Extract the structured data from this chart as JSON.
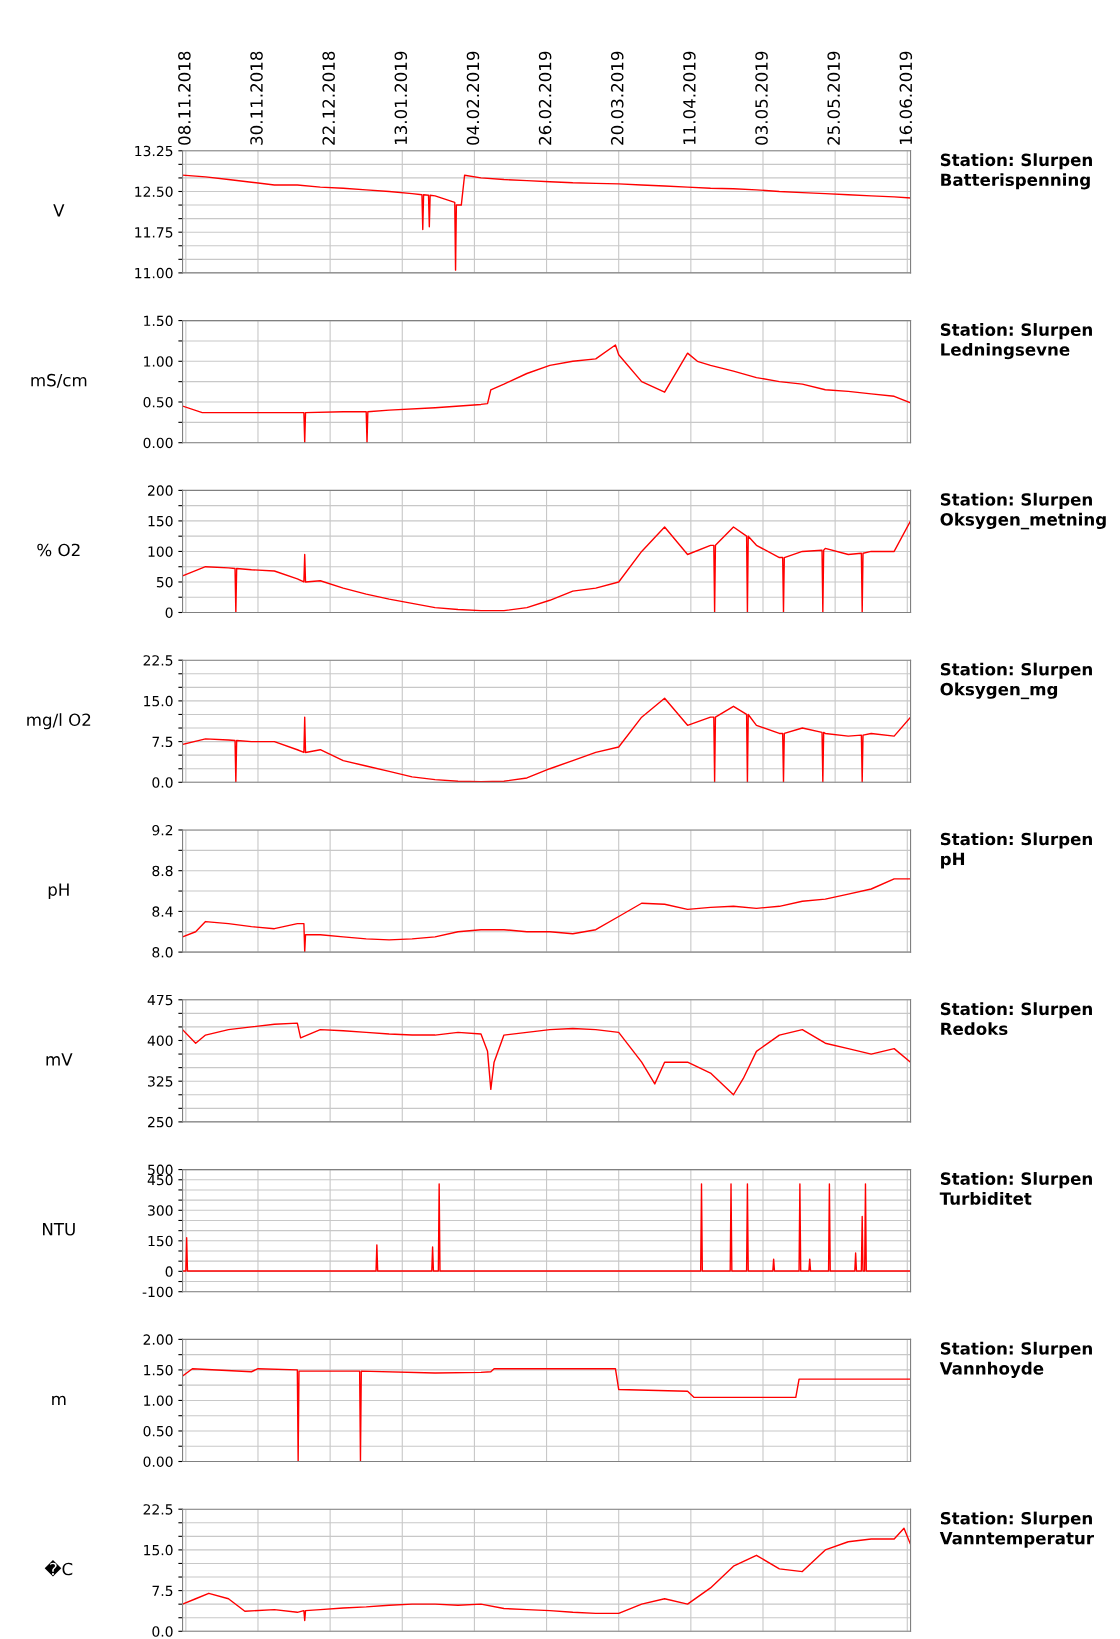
{
  "chart_data": [
    {
      "type": "line",
      "annotations": [
        "Station: Slurpen\nBatterispenning"
      ],
      "ylabel": "V",
      "color": "#ff0000",
      "grid": true,
      "line_style": "solid",
      "xlim": [
        "2018-11-07",
        "2019-06-17"
      ],
      "xticks": [
        {
          "value": "2018-11-08",
          "label": "08.11.2018"
        },
        {
          "value": "2018-11-30",
          "label": "30.11.2018"
        },
        {
          "value": "2018-12-22",
          "label": "22.12.2018"
        },
        {
          "value": "2019-01-13",
          "label": "13.01.2019"
        },
        {
          "value": "2019-02-04",
          "label": "04.02.2019"
        },
        {
          "value": "2019-02-26",
          "label": "26.02.2019"
        },
        {
          "value": "2019-03-20",
          "label": "20.03.2019"
        },
        {
          "value": "2019-04-11",
          "label": "11.04.2019"
        },
        {
          "value": "2019-05-03",
          "label": "03.05.2019"
        },
        {
          "value": "2019-05-25",
          "label": "25.05.2019"
        },
        {
          "value": "2019-06-16",
          "label": "16.06.2019"
        }
      ],
      "ylim": [
        11,
        13.25
      ],
      "yticks": [
        {
          "value": 11,
          "label": "11.00"
        },
        {
          "value": 11.25,
          "label": null
        },
        {
          "value": 11.5,
          "label": null
        },
        {
          "value": 11.75,
          "label": "11.75"
        },
        {
          "value": 12,
          "label": null
        },
        {
          "value": 12.25,
          "label": null
        },
        {
          "value": 12.5,
          "label": "12.50"
        },
        {
          "value": 12.75,
          "label": null
        },
        {
          "value": 13,
          "label": null
        },
        {
          "value": 13.25,
          "label": "13.25"
        }
      ],
      "x": [
        "2018-11-07",
        "2018-11-14",
        "2018-11-21",
        "2018-11-28",
        "2018-12-05",
        "2018-12-12",
        "2018-12-19",
        "2018-12-26",
        "2019-01-02",
        "2019-01-09",
        "2019-01-16",
        "2019-01-19T00:00",
        "2019-01-19T06:00",
        "2019-01-19T12:00",
        "2019-01-21T00:00",
        "2019-01-21T06:00",
        "2019-01-21T12:00",
        "2019-01-23",
        "2019-01-29T00:00",
        "2019-01-29T06:00",
        "2019-01-29T12:00",
        "2019-01-31",
        "2019-02-01",
        "2019-02-06",
        "2019-02-13",
        "2019-02-20",
        "2019-02-27",
        "2019-03-06",
        "2019-03-13",
        "2019-03-20",
        "2019-03-27",
        "2019-04-03",
        "2019-04-10",
        "2019-04-17",
        "2019-04-24",
        "2019-05-01",
        "2019-05-08",
        "2019-05-15",
        "2019-05-22",
        "2019-05-29",
        "2019-06-05",
        "2019-06-12",
        "2019-06-17"
      ],
      "values": [
        12.8,
        12.77,
        12.72,
        12.67,
        12.62,
        12.62,
        12.58,
        12.56,
        12.53,
        12.5,
        12.46,
        12.44,
        11.8,
        12.44,
        12.43,
        11.85,
        12.43,
        12.42,
        12.3,
        11.05,
        12.25,
        12.25,
        12.8,
        12.75,
        12.72,
        12.7,
        12.68,
        12.66,
        12.65,
        12.64,
        12.62,
        12.6,
        12.58,
        12.56,
        12.55,
        12.53,
        12.5,
        12.48,
        12.46,
        12.44,
        12.42,
        12.4,
        12.38
      ]
    },
    {
      "type": "line",
      "annotations": [
        "Station: Slurpen\nLedningsevne"
      ],
      "ylabel": "mS/cm",
      "color": "#ff0000",
      "grid": true,
      "line_style": "solid",
      "tick_labels": "y",
      "xlim": [
        "2018-11-07",
        "2019-06-17"
      ],
      "xticks": [
        "2018-11-08",
        "2018-11-30",
        "2018-12-22",
        "2019-01-13",
        "2019-02-04",
        "2019-02-26",
        "2019-03-20",
        "2019-04-11",
        "2019-05-03",
        "2019-05-25",
        "2019-06-16"
      ],
      "ylim": [
        0,
        1.5
      ],
      "yticks": [
        {
          "value": 0,
          "label": "0.00"
        },
        {
          "value": 0.25,
          "label": null
        },
        {
          "value": 0.5,
          "label": "0.50"
        },
        {
          "value": 0.75,
          "label": null
        },
        {
          "value": 1,
          "label": "1.00"
        },
        {
          "value": 1.25,
          "label": null
        },
        {
          "value": 1.5,
          "label": "1.50"
        }
      ],
      "x": [
        "2018-11-07",
        "2018-11-13",
        "2018-11-21",
        "2018-12-05",
        "2018-12-14T00:00",
        "2018-12-14T06:00",
        "2018-12-14T12:00",
        "2018-12-26",
        "2019-01-02T00:00",
        "2019-01-02T06:00",
        "2019-01-02T12:00",
        "2019-01-09",
        "2019-01-23",
        "2019-02-06",
        "2019-02-08",
        "2019-02-09",
        "2019-02-13",
        "2019-02-20",
        "2019-02-27",
        "2019-03-06",
        "2019-03-13",
        "2019-03-19",
        "2019-03-20",
        "2019-03-27",
        "2019-04-03",
        "2019-04-10",
        "2019-04-13",
        "2019-04-17",
        "2019-04-24",
        "2019-05-01",
        "2019-05-08",
        "2019-05-15",
        "2019-05-22",
        "2019-05-29",
        "2019-06-05",
        "2019-06-12",
        "2019-06-17"
      ],
      "values": [
        0.45,
        0.37,
        0.37,
        0.37,
        0.37,
        0.0,
        0.37,
        0.38,
        0.38,
        0.0,
        0.38,
        0.4,
        0.43,
        0.47,
        0.48,
        0.65,
        0.72,
        0.85,
        0.95,
        1.0,
        1.03,
        1.2,
        1.08,
        0.75,
        0.62,
        1.1,
        1.0,
        0.95,
        0.88,
        0.8,
        0.75,
        0.72,
        0.65,
        0.63,
        0.6,
        0.57,
        0.49
      ]
    },
    {
      "type": "line",
      "annotations": [
        "Station: Slurpen\nOksygen_metning"
      ],
      "ylabel": "% O2",
      "color": "#ff0000",
      "grid": true,
      "line_style": "solid",
      "tick_labels": "y",
      "xlim": [
        "2018-11-07",
        "2019-06-17"
      ],
      "xticks": [
        "2018-11-08",
        "2018-11-30",
        "2018-12-22",
        "2019-01-13",
        "2019-02-04",
        "2019-02-26",
        "2019-03-20",
        "2019-04-11",
        "2019-05-03",
        "2019-05-25",
        "2019-06-16"
      ],
      "ylim": [
        0,
        200
      ],
      "yticks": [
        0,
        {
          "value": 25,
          "label": null
        },
        50,
        {
          "value": 75,
          "label": null
        },
        100,
        {
          "value": 125,
          "label": null
        },
        150,
        {
          "value": 175,
          "label": null
        },
        200
      ],
      "x": [
        "2018-11-07",
        "2018-11-14",
        "2018-11-21",
        "2018-11-23T00:00",
        "2018-11-23T06:00",
        "2018-11-23T12:00",
        "2018-11-28",
        "2018-12-05",
        "2018-12-12",
        "2018-12-14T00:00",
        "2018-12-14T06:00",
        "2018-12-14T12:00",
        "2018-12-19",
        "2018-12-26",
        "2019-01-02",
        "2019-01-09",
        "2019-01-16",
        "2019-01-23",
        "2019-01-30",
        "2019-02-06",
        "2019-02-13",
        "2019-02-20",
        "2019-02-27",
        "2019-03-06",
        "2019-03-13",
        "2019-03-20",
        "2019-03-27",
        "2019-04-03",
        "2019-04-10",
        "2019-04-17",
        "2019-04-18T00:00",
        "2019-04-18T06:00",
        "2019-04-18T12:00",
        "2019-04-24",
        "2019-04-28T00:00",
        "2019-04-28T06:00",
        "2019-04-28T12:00",
        "2019-05-01",
        "2019-05-08",
        "2019-05-09T00:00",
        "2019-05-09T06:00",
        "2019-05-09T12:00",
        "2019-05-15",
        "2019-05-21T00:00",
        "2019-05-21T06:00",
        "2019-05-21T12:00",
        "2019-05-22",
        "2019-05-29",
        "2019-06-02T00:00",
        "2019-06-02T06:00",
        "2019-06-02T12:00",
        "2019-06-05",
        "2019-06-12",
        "2019-06-17"
      ],
      "values": [
        60,
        75,
        73,
        72,
        0,
        72,
        70,
        68,
        55,
        50,
        95,
        50,
        52,
        40,
        30,
        22,
        15,
        8,
        5,
        3,
        3,
        8,
        20,
        35,
        40,
        50,
        100,
        140,
        95,
        110,
        110,
        0,
        110,
        140,
        125,
        0,
        125,
        110,
        90,
        90,
        0,
        90,
        100,
        102,
        0,
        102,
        105,
        95,
        97,
        0,
        97,
        100,
        100,
        150
      ]
    },
    {
      "type": "line",
      "annotations": [
        "Station: Slurpen\nOksygen_mg"
      ],
      "ylabel": "mg/l O2",
      "color": "#ff0000",
      "grid": true,
      "line_style": "solid",
      "tick_labels": "y",
      "xlim": [
        "2018-11-07",
        "2019-06-17"
      ],
      "xticks": [
        "2018-11-08",
        "2018-11-30",
        "2018-12-22",
        "2019-01-13",
        "2019-02-04",
        "2019-02-26",
        "2019-03-20",
        "2019-04-11",
        "2019-05-03",
        "2019-05-25",
        "2019-06-16"
      ],
      "ylim": [
        0,
        22.5
      ],
      "yticks": [
        {
          "value": 0,
          "label": "0.0"
        },
        {
          "value": 2.5,
          "label": null
        },
        {
          "value": 5,
          "label": null
        },
        {
          "value": 7.5,
          "label": "7.5"
        },
        {
          "value": 10,
          "label": null
        },
        {
          "value": 12.5,
          "label": null
        },
        {
          "value": 15,
          "label": "15.0"
        },
        {
          "value": 17.5,
          "label": null
        },
        {
          "value": 20,
          "label": null
        },
        {
          "value": 22.5,
          "label": "22.5"
        }
      ],
      "x": [
        "2018-11-07",
        "2018-11-14",
        "2018-11-21",
        "2018-11-23T00:00",
        "2018-11-23T06:00",
        "2018-11-23T12:00",
        "2018-11-28",
        "2018-12-05",
        "2018-12-12",
        "2018-12-14T00:00",
        "2018-12-14T06:00",
        "2018-12-14T12:00",
        "2018-12-19",
        "2018-12-26",
        "2019-01-02",
        "2019-01-09",
        "2019-01-16",
        "2019-01-23",
        "2019-01-30",
        "2019-02-06",
        "2019-02-13",
        "2019-02-20",
        "2019-02-27",
        "2019-03-06",
        "2019-03-13",
        "2019-03-20",
        "2019-03-27",
        "2019-04-03",
        "2019-04-10",
        "2019-04-17",
        "2019-04-18T00:00",
        "2019-04-18T06:00",
        "2019-04-18T12:00",
        "2019-04-24",
        "2019-04-28T00:00",
        "2019-04-28T06:00",
        "2019-04-28T12:00",
        "2019-05-01",
        "2019-05-08",
        "2019-05-09T00:00",
        "2019-05-09T06:00",
        "2019-05-09T12:00",
        "2019-05-15",
        "2019-05-21T00:00",
        "2019-05-21T06:00",
        "2019-05-21T12:00",
        "2019-05-22",
        "2019-05-29",
        "2019-06-02T00:00",
        "2019-06-02T06:00",
        "2019-06-02T12:00",
        "2019-06-05",
        "2019-06-12",
        "2019-06-17"
      ],
      "values": [
        7.0,
        8.0,
        7.8,
        7.7,
        0,
        7.7,
        7.5,
        7.5,
        6.0,
        5.5,
        12.0,
        5.5,
        6.0,
        4.0,
        3.0,
        2.0,
        1.0,
        0.5,
        0.2,
        0.1,
        0.2,
        0.8,
        2.5,
        4.0,
        5.5,
        6.5,
        12.0,
        15.5,
        10.5,
        12.0,
        12.0,
        0,
        12.0,
        14.0,
        12.5,
        0,
        12.5,
        10.5,
        9.0,
        9.0,
        0,
        9.0,
        10.0,
        9.2,
        0,
        9.2,
        9.0,
        8.5,
        8.7,
        0,
        8.7,
        9.0,
        8.5,
        12.0
      ]
    },
    {
      "type": "line",
      "annotations": [
        "Station: Slurpen\npH"
      ],
      "ylabel": "pH",
      "color": "#ff0000",
      "grid": true,
      "line_style": "solid",
      "tick_labels": "y",
      "xlim": [
        "2018-11-07",
        "2019-06-17"
      ],
      "xticks": [
        "2018-11-08",
        "2018-11-30",
        "2018-12-22",
        "2019-01-13",
        "2019-02-04",
        "2019-02-26",
        "2019-03-20",
        "2019-04-11",
        "2019-05-03",
        "2019-05-25",
        "2019-06-16"
      ],
      "ylim": [
        8.0,
        9.2
      ],
      "yticks": [
        {
          "value": 8.0,
          "label": "8.0"
        },
        {
          "value": 8.2,
          "label": null
        },
        {
          "value": 8.4,
          "label": "8.4"
        },
        {
          "value": 8.6,
          "label": null
        },
        {
          "value": 8.8,
          "label": "8.8"
        },
        {
          "value": 9.0,
          "label": null
        },
        {
          "value": 9.2,
          "label": "9.2"
        }
      ],
      "x": [
        "2018-11-07",
        "2018-11-11",
        "2018-11-14",
        "2018-11-21",
        "2018-11-28",
        "2018-12-05",
        "2018-12-12",
        "2018-12-14T00:00",
        "2018-12-14T06:00",
        "2018-12-14T12:00",
        "2018-12-19",
        "2018-12-26",
        "2019-01-02",
        "2019-01-09",
        "2019-01-16",
        "2019-01-23",
        "2019-01-30",
        "2019-02-06",
        "2019-02-13",
        "2019-02-20",
        "2019-02-27",
        "2019-03-06",
        "2019-03-13",
        "2019-03-20",
        "2019-03-27",
        "2019-04-03",
        "2019-04-10",
        "2019-04-17",
        "2019-04-24",
        "2019-05-01",
        "2019-05-08",
        "2019-05-15",
        "2019-05-22",
        "2019-05-29",
        "2019-06-05",
        "2019-06-12",
        "2019-06-17"
      ],
      "values": [
        8.15,
        8.2,
        8.3,
        8.28,
        8.25,
        8.23,
        8.28,
        8.28,
        8.0,
        8.17,
        8.17,
        8.15,
        8.13,
        8.12,
        8.13,
        8.15,
        8.2,
        8.22,
        8.22,
        8.2,
        8.2,
        8.18,
        8.22,
        8.35,
        8.48,
        8.47,
        8.42,
        8.44,
        8.45,
        8.43,
        8.45,
        8.5,
        8.52,
        8.57,
        8.62,
        8.72,
        8.72
      ]
    },
    {
      "type": "line",
      "annotations": [
        "Station: Slurpen\nRedoks"
      ],
      "ylabel": "mV",
      "color": "#ff0000",
      "grid": true,
      "line_style": "solid",
      "tick_labels": "y",
      "xlim": [
        "2018-11-07",
        "2019-06-17"
      ],
      "xticks": [
        "2018-11-08",
        "2018-11-30",
        "2018-12-22",
        "2019-01-13",
        "2019-02-04",
        "2019-02-26",
        "2019-03-20",
        "2019-04-11",
        "2019-05-03",
        "2019-05-25",
        "2019-06-16"
      ],
      "ylim": [
        250,
        475
      ],
      "yticks": [
        250,
        {
          "value": 275,
          "label": null
        },
        {
          "value": 300,
          "label": null
        },
        325,
        {
          "value": 350,
          "label": null
        },
        {
          "value": 375,
          "label": null
        },
        400,
        {
          "value": 425,
          "label": null
        },
        {
          "value": 450,
          "label": null
        },
        475
      ],
      "x": [
        "2018-11-07",
        "2018-11-11",
        "2018-11-14",
        "2018-11-21",
        "2018-11-28",
        "2018-12-05",
        "2018-12-12",
        "2018-12-13",
        "2018-12-19",
        "2018-12-26",
        "2019-01-02",
        "2019-01-09",
        "2019-01-16",
        "2019-01-23",
        "2019-01-30",
        "2019-02-06",
        "2019-02-08",
        "2019-02-09",
        "2019-02-10",
        "2019-02-13",
        "2019-02-20",
        "2019-02-27",
        "2019-03-06",
        "2019-03-13",
        "2019-03-20",
        "2019-03-27",
        "2019-03-31",
        "2019-04-03",
        "2019-04-10",
        "2019-04-17",
        "2019-04-24",
        "2019-04-27",
        "2019-05-01",
        "2019-05-08",
        "2019-05-15",
        "2019-05-22",
        "2019-05-29",
        "2019-06-05",
        "2019-06-12",
        "2019-06-17"
      ],
      "values": [
        420,
        395,
        410,
        420,
        425,
        430,
        432,
        405,
        420,
        418,
        415,
        412,
        410,
        410,
        415,
        412,
        380,
        310,
        360,
        410,
        415,
        420,
        422,
        420,
        415,
        360,
        320,
        360,
        360,
        340,
        300,
        330,
        380,
        410,
        420,
        395,
        385,
        375,
        385,
        360
      ]
    },
    {
      "type": "line",
      "annotations": [
        "Station: Slurpen\nTurbiditet"
      ],
      "ylabel": "NTU",
      "color": "#ff0000",
      "grid": true,
      "line_style": "solid",
      "tick_labels": "y",
      "xlim": [
        "2018-11-07",
        "2019-06-17"
      ],
      "xticks": [
        "2018-11-08",
        "2018-11-30",
        "2018-12-22",
        "2019-01-13",
        "2019-02-04",
        "2019-02-26",
        "2019-03-20",
        "2019-04-11",
        "2019-05-03",
        "2019-05-25",
        "2019-06-16"
      ],
      "ylim": [
        -100,
        500
      ],
      "yticks": [
        -100,
        {
          "value": -50,
          "label": null
        },
        0,
        {
          "value": 50,
          "label": null
        },
        {
          "value": 100,
          "label": null
        },
        150,
        {
          "value": 200,
          "label": null
        },
        {
          "value": 250,
          "label": null
        },
        300,
        {
          "value": 350,
          "label": null
        },
        {
          "value": 400,
          "label": null
        },
        450,
        500
      ],
      "x": [
        "2018-11-07",
        "2018-11-08T00:00",
        "2018-11-08T06:00",
        "2018-11-08T12:00",
        "2019-01-05T00:00",
        "2019-01-05T06:00",
        "2019-01-05T12:00",
        "2019-01-22T00:00",
        "2019-01-22T06:00",
        "2019-01-22T12:00",
        "2019-01-24T00:00",
        "2019-01-24T06:00",
        "2019-01-24T12:00",
        "2019-04-14T00:00",
        "2019-04-14T06:00",
        "2019-04-14T12:00",
        "2019-04-23T00:00",
        "2019-04-23T06:00",
        "2019-04-23T12:00",
        "2019-04-28T00:00",
        "2019-04-28T06:00",
        "2019-04-28T12:00",
        "2019-05-06T00:00",
        "2019-05-06T06:00",
        "2019-05-06T12:00",
        "2019-05-14T00:00",
        "2019-05-14T06:00",
        "2019-05-14T12:00",
        "2019-05-17T00:00",
        "2019-05-17T06:00",
        "2019-05-17T12:00",
        "2019-05-23T00:00",
        "2019-05-23T06:00",
        "2019-05-23T12:00",
        "2019-05-31T00:00",
        "2019-05-31T06:00",
        "2019-05-31T12:00",
        "2019-06-02T00:00",
        "2019-06-02T06:00",
        "2019-06-02T12:00",
        "2019-06-03T00:00",
        "2019-06-03T06:00",
        "2019-06-03T12:00",
        "2019-06-17"
      ],
      "values": [
        2,
        2,
        165,
        2,
        2,
        130,
        2,
        2,
        120,
        2,
        2,
        430,
        2,
        2,
        430,
        2,
        2,
        430,
        2,
        2,
        430,
        2,
        2,
        60,
        2,
        2,
        430,
        2,
        2,
        60,
        2,
        2,
        430,
        2,
        2,
        90,
        2,
        2,
        270,
        2,
        2,
        430,
        2,
        2
      ]
    },
    {
      "type": "line",
      "annotations": [
        "Station: Slurpen\nVannhoyde"
      ],
      "ylabel": "m",
      "color": "#ff0000",
      "grid": true,
      "line_style": "solid",
      "tick_labels": "y",
      "xlim": [
        "2018-11-07",
        "2019-06-17"
      ],
      "xticks": [
        "2018-11-08",
        "2018-11-30",
        "2018-12-22",
        "2019-01-13",
        "2019-02-04",
        "2019-02-26",
        "2019-03-20",
        "2019-04-11",
        "2019-05-03",
        "2019-05-25",
        "2019-06-16"
      ],
      "ylim": [
        0,
        2
      ],
      "yticks": [
        {
          "value": 0,
          "label": "0.00"
        },
        {
          "value": 0.25,
          "label": null
        },
        {
          "value": 0.5,
          "label": "0.50"
        },
        {
          "value": 0.75,
          "label": null
        },
        {
          "value": 1,
          "label": "1.00"
        },
        {
          "value": 1.25,
          "label": null
        },
        {
          "value": 1.5,
          "label": "1.50"
        },
        {
          "value": 1.75,
          "label": null
        },
        {
          "value": 2,
          "label": "2.00"
        }
      ],
      "x": [
        "2018-11-07",
        "2018-11-10",
        "2018-11-28",
        "2018-11-30",
        "2018-12-12T00:00",
        "2018-12-12T06:00",
        "2018-12-12T12:00",
        "2018-12-31T00:00",
        "2018-12-31T06:00",
        "2018-12-31T12:00",
        "2019-01-23",
        "2019-02-06",
        "2019-02-09",
        "2019-02-10",
        "2019-03-19",
        "2019-03-20",
        "2019-04-10",
        "2019-04-12",
        "2019-05-13",
        "2019-05-14",
        "2019-06-17"
      ],
      "values": [
        1.4,
        1.52,
        1.47,
        1.52,
        1.5,
        0.0,
        1.48,
        1.48,
        0.0,
        1.48,
        1.45,
        1.46,
        1.47,
        1.52,
        1.52,
        1.18,
        1.15,
        1.05,
        1.05,
        1.35,
        1.35
      ]
    },
    {
      "type": "line",
      "annotations": [
        "Station: Slurpen\nVanntemperatur"
      ],
      "ylabel": "�C",
      "color": "#ff0000",
      "grid": true,
      "line_style": "solid",
      "tick_labels": "y",
      "xlim": [
        "2018-11-07",
        "2019-06-17"
      ],
      "xticks": [
        "2018-11-08",
        "2018-11-30",
        "2018-12-22",
        "2019-01-13",
        "2019-02-04",
        "2019-02-26",
        "2019-03-20",
        "2019-04-11",
        "2019-05-03",
        "2019-05-25",
        "2019-06-16"
      ],
      "ylim": [
        0,
        22.5
      ],
      "yticks": [
        {
          "value": 0,
          "label": "0.0"
        },
        {
          "value": 2.5,
          "label": null
        },
        {
          "value": 5,
          "label": null
        },
        {
          "value": 7.5,
          "label": "7.5"
        },
        {
          "value": 10,
          "label": null
        },
        {
          "value": 12.5,
          "label": null
        },
        {
          "value": 15,
          "label": "15.0"
        },
        {
          "value": 17.5,
          "label": null
        },
        {
          "value": 20,
          "label": null
        },
        {
          "value": 22.5,
          "label": "22.5"
        }
      ],
      "x": [
        "2018-11-07",
        "2018-11-11",
        "2018-11-15",
        "2018-11-21",
        "2018-11-26",
        "2018-12-05",
        "2018-12-12",
        "2018-12-14T00:00",
        "2018-12-14T06:00",
        "2018-12-14T12:00",
        "2018-12-19",
        "2018-12-26",
        "2019-01-02",
        "2019-01-09",
        "2019-01-16",
        "2019-01-23",
        "2019-01-30",
        "2019-02-06",
        "2019-02-13",
        "2019-02-20",
        "2019-02-27",
        "2019-03-06",
        "2019-03-13",
        "2019-03-20",
        "2019-03-27",
        "2019-04-03",
        "2019-04-10",
        "2019-04-17",
        "2019-04-24",
        "2019-05-01",
        "2019-05-08",
        "2019-05-15",
        "2019-05-22",
        "2019-05-29",
        "2019-06-05",
        "2019-06-12",
        "2019-06-15",
        "2019-06-17"
      ],
      "values": [
        5.0,
        6.0,
        7.0,
        6.0,
        3.7,
        4.0,
        3.5,
        3.8,
        2.0,
        3.8,
        4.0,
        4.3,
        4.5,
        4.8,
        5.0,
        5.0,
        4.8,
        5.0,
        4.2,
        4.0,
        3.8,
        3.5,
        3.3,
        3.3,
        5.0,
        6.0,
        5.0,
        8.0,
        12.0,
        14.0,
        11.5,
        11.0,
        15.0,
        16.5,
        17.0,
        17.0,
        19.0,
        16.0
      ]
    }
  ]
}
